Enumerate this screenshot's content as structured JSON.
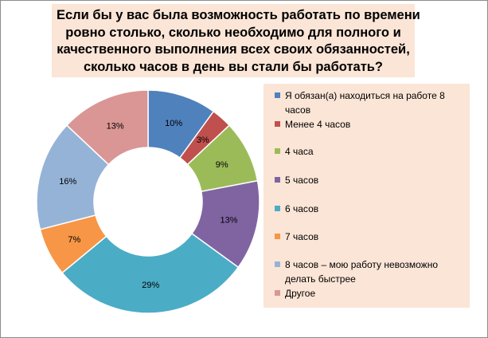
{
  "title_lines": [
    "Если бы у вас была возможность работать  по времени",
    "ровно столько, сколько необходимо для полного и",
    "качественного выполнения всех своих обязанностей,",
    "сколько часов в день вы стали бы работать?"
  ],
  "chart_data": {
    "type": "pie",
    "subtype": "doughnut",
    "title": "Если бы у вас была возможность работать  по времени ровно столько, сколько необходимо для полного и качественного выполнения всех своих обязанностей, сколько часов в день вы стали бы работать?",
    "legend_position": "right",
    "slices": [
      {
        "label": "Я обязан(а) находиться на работе 8 часов",
        "value": 10,
        "data_label": "10%",
        "color": "#4f81bd"
      },
      {
        "label": "Менее 4 часов",
        "value": 3,
        "data_label": "3%",
        "color": "#c0504d"
      },
      {
        "label": "4 часа",
        "value": 9,
        "data_label": "9%",
        "color": "#9bbb59"
      },
      {
        "label": "5 часов",
        "value": 13,
        "data_label": "13%",
        "color": "#8064a2"
      },
      {
        "label": "6 часов",
        "value": 29,
        "data_label": "29%",
        "color": "#4bacc6"
      },
      {
        "label": "7 часов",
        "value": 7,
        "data_label": "7%",
        "color": "#f79646"
      },
      {
        "label": "8 часов – мою работу невозможно делать быстрее",
        "value": 16,
        "data_label": "16%",
        "color": "#95b3d7"
      },
      {
        "label": "Другое",
        "value": 13,
        "data_label": "13%",
        "color": "#d99694"
      }
    ]
  }
}
